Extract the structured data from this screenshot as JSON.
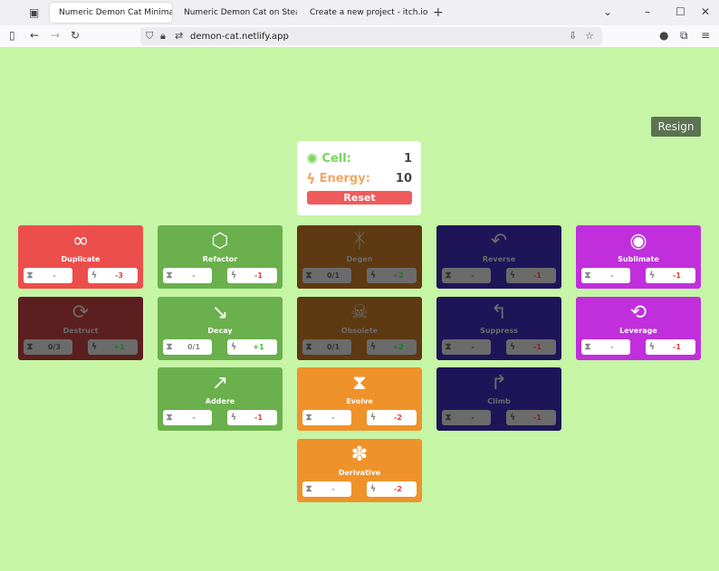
{
  "browser": {
    "tabs": [
      {
        "title": "Numeric Demon Cat Minimal",
        "color": "#2a4a7a"
      },
      {
        "title": "Numeric Demon Cat on Steam",
        "color": "#1b2838"
      },
      {
        "title": "Create a new project - itch.io",
        "color": "#fa5c5c"
      }
    ],
    "url": "demon-cat.netlify.app"
  },
  "resign_label": "Resign",
  "panel": {
    "cell_label": "Cell:",
    "cell_value": "1",
    "energy_label": "Energy:",
    "energy_value": "10",
    "reset_label": "Reset"
  },
  "colors": {
    "red": "#ec4e4c",
    "red_off": "#5c1f1f",
    "green": "#6ab04c",
    "brown_off": "#5e3a12",
    "orange": "#f0922a",
    "navy_off": "#1e1558",
    "purple": "#c02fdb",
    "cost": "#e83a3a",
    "gain": "#3cbf3c"
  },
  "cards": [
    {
      "name": "Duplicate",
      "col": 0,
      "row": 0,
      "color": "#ec4e4c",
      "active": true,
      "icon": "∞",
      "cooldown": "-",
      "energy": "-3"
    },
    {
      "name": "Destruct",
      "col": 0,
      "row": 1,
      "color": "#5c1f1f",
      "active": false,
      "icon": "⟳",
      "cooldown": "0/3",
      "energy": "+1"
    },
    {
      "name": "Refactor",
      "col": 1,
      "row": 0,
      "color": "#6ab04c",
      "active": true,
      "icon": "⬡",
      "cooldown": "-",
      "energy": "-1"
    },
    {
      "name": "Decay",
      "col": 1,
      "row": 1,
      "color": "#6ab04c",
      "active": true,
      "icon": "↘",
      "cooldown": "0/1",
      "energy": "+1"
    },
    {
      "name": "Addere",
      "col": 1,
      "row": 2,
      "color": "#6ab04c",
      "active": true,
      "icon": "↗",
      "cooldown": "-",
      "energy": "-1"
    },
    {
      "name": "Degen",
      "col": 2,
      "row": 0,
      "color": "#5e3a12",
      "active": false,
      "icon": "ᛡ",
      "cooldown": "0/1",
      "energy": "+2"
    },
    {
      "name": "Obsolete",
      "col": 2,
      "row": 1,
      "color": "#5e3a12",
      "active": false,
      "icon": "☠",
      "cooldown": "0/1",
      "energy": "+2"
    },
    {
      "name": "Evolve",
      "col": 2,
      "row": 2,
      "color": "#f0922a",
      "active": true,
      "icon": "⧗",
      "cooldown": "-",
      "energy": "-2"
    },
    {
      "name": "Derivative",
      "col": 2,
      "row": 3,
      "color": "#f0922a",
      "active": true,
      "icon": "✽",
      "cooldown": "-",
      "energy": "-2"
    },
    {
      "name": "Reverse",
      "col": 3,
      "row": 0,
      "color": "#1e1558",
      "active": false,
      "icon": "↶",
      "cooldown": "-",
      "energy": "-1"
    },
    {
      "name": "Suppress",
      "col": 3,
      "row": 1,
      "color": "#1e1558",
      "active": false,
      "icon": "↰",
      "cooldown": "-",
      "energy": "-1"
    },
    {
      "name": "Climb",
      "col": 3,
      "row": 2,
      "color": "#1e1558",
      "active": false,
      "icon": "↱",
      "cooldown": "-",
      "energy": "-1"
    },
    {
      "name": "Sublimate",
      "col": 4,
      "row": 0,
      "color": "#c02fdb",
      "active": true,
      "icon": "◉",
      "cooldown": "-",
      "energy": "-1"
    },
    {
      "name": "Leverage",
      "col": 4,
      "row": 1,
      "color": "#c02fdb",
      "active": true,
      "icon": "⟲",
      "cooldown": "-",
      "energy": "-1"
    }
  ]
}
